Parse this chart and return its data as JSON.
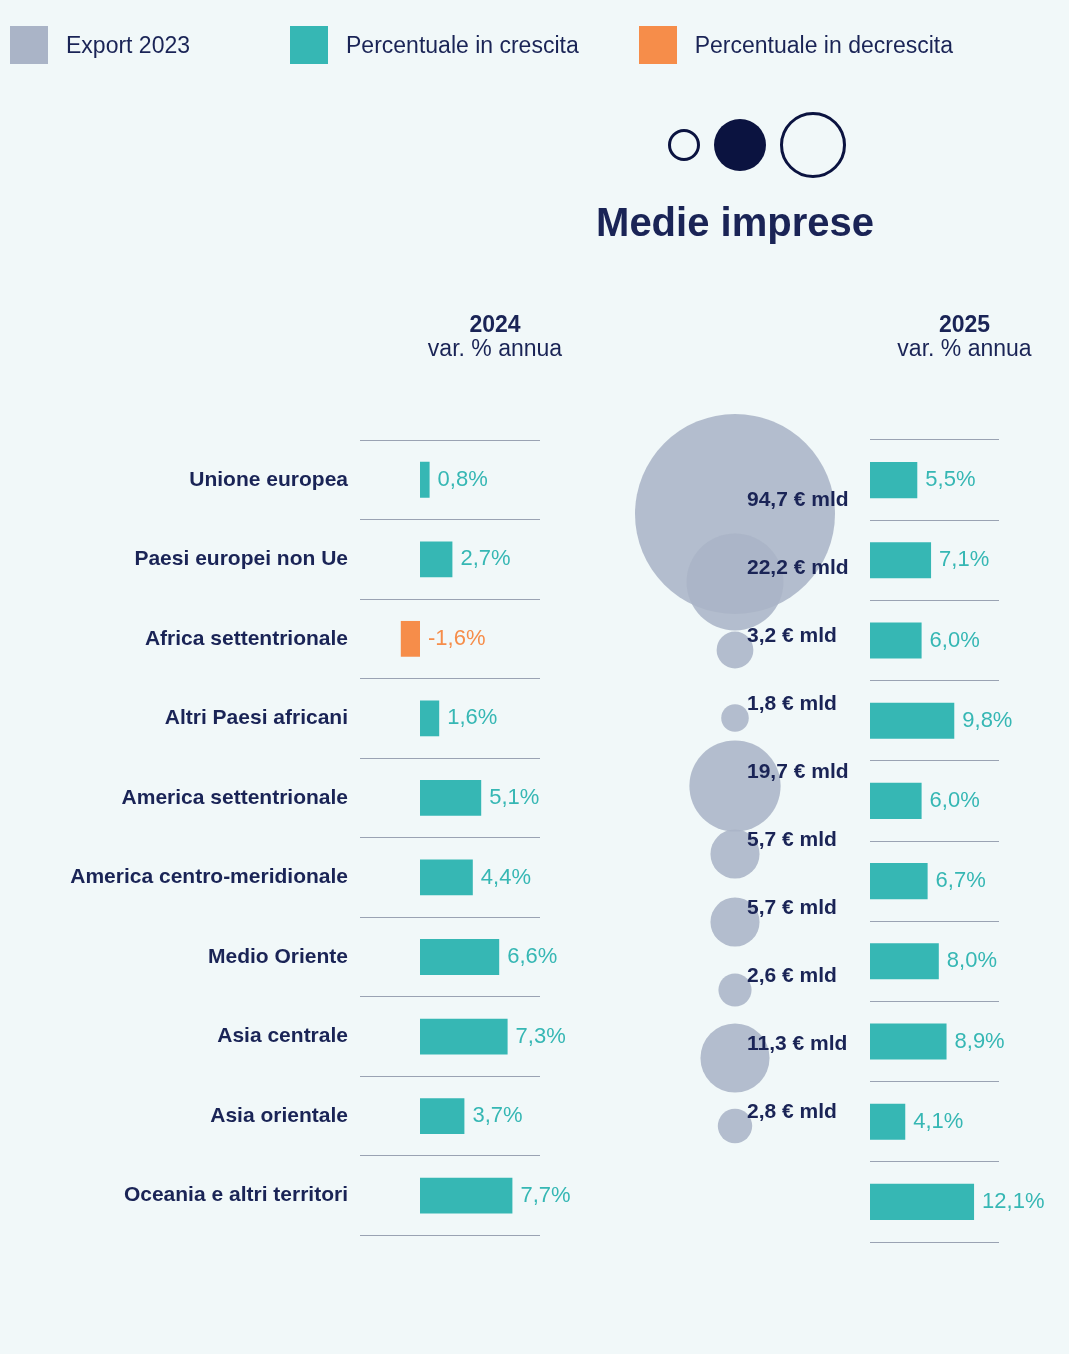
{
  "chart_data": [
    {
      "type": "bar",
      "orientation": "horizontal",
      "stacked": true,
      "title": "2024",
      "subtitle": "var. % annua",
      "legend": "top right",
      "tick_labels": "y",
      "grid": "y",
      "categories": [
        "Unione europea",
        "Paesi europei non Ue",
        "Africa settentrionale",
        "Altri Paesi africani",
        "America settentrionale",
        "America centro-meridionale",
        "Medio Oriente",
        "Asia centrale",
        "Asia orientale",
        "Oceania e altri territori"
      ],
      "series": [
        {
          "name": "Percentuale in crescita",
          "color": "#36b7b4",
          "values": [
            0.8,
            2.7,
            null,
            1.6,
            5.1,
            4.4,
            6.6,
            7.3,
            3.7,
            7.7
          ],
          "value_labels": [
            "0,8%",
            "2,7%",
            null,
            "1,6%",
            "5,1%",
            "4,4%",
            "6,6%",
            "7,3%",
            "3,7%",
            "7,7%"
          ]
        },
        {
          "name": "Percentuale in decrescita",
          "color": "#f68d4a",
          "values": [
            null,
            null,
            -1.6,
            null,
            null,
            null,
            null,
            null,
            null,
            null
          ],
          "value_labels": [
            null,
            null,
            "-1,6%",
            null,
            null,
            null,
            null,
            null,
            null,
            null
          ]
        }
      ]
    },
    {
      "type": "other",
      "title": "Medie imprese",
      "legend": "top left",
      "categories": [
        null,
        null,
        null,
        null,
        null,
        null,
        null,
        null,
        null,
        null
      ],
      "series": [
        {
          "name": "Export 2023",
          "color": "#aab4c7",
          "values": [
            94.7,
            22.2,
            3.2,
            1.8,
            19.7,
            5.7,
            5.7,
            2.6,
            11.3,
            2.8
          ],
          "value_labels": [
            "94,7 € mld",
            "22,2 € mld",
            "3,2 € mld",
            "1,8 € mld",
            "19,7 € mld",
            "5,7 € mld",
            "5,7 € mld",
            "2,6 € mld",
            "11,3 € mld",
            "2,8 € mld"
          ]
        }
      ]
    },
    {
      "type": "bar",
      "orientation": "horizontal",
      "title": "2025",
      "subtitle": "var. % annua",
      "tick_labels": false,
      "grid": "y",
      "categories": [
        null,
        null,
        null,
        null,
        null,
        null,
        null,
        null,
        null,
        null
      ],
      "series": [
        {
          "color": "#36b7b4",
          "values": [
            5.5,
            7.1,
            6.0,
            9.8,
            6.0,
            6.7,
            8.0,
            8.9,
            4.1,
            12.1
          ],
          "value_labels": [
            "5,5%",
            "7,1%",
            "6,0%",
            "9,8%",
            "6,0%",
            "6,7%",
            "8,0%",
            "8,9%",
            "4,1%",
            "12,1%"
          ]
        }
      ]
    }
  ]
}
